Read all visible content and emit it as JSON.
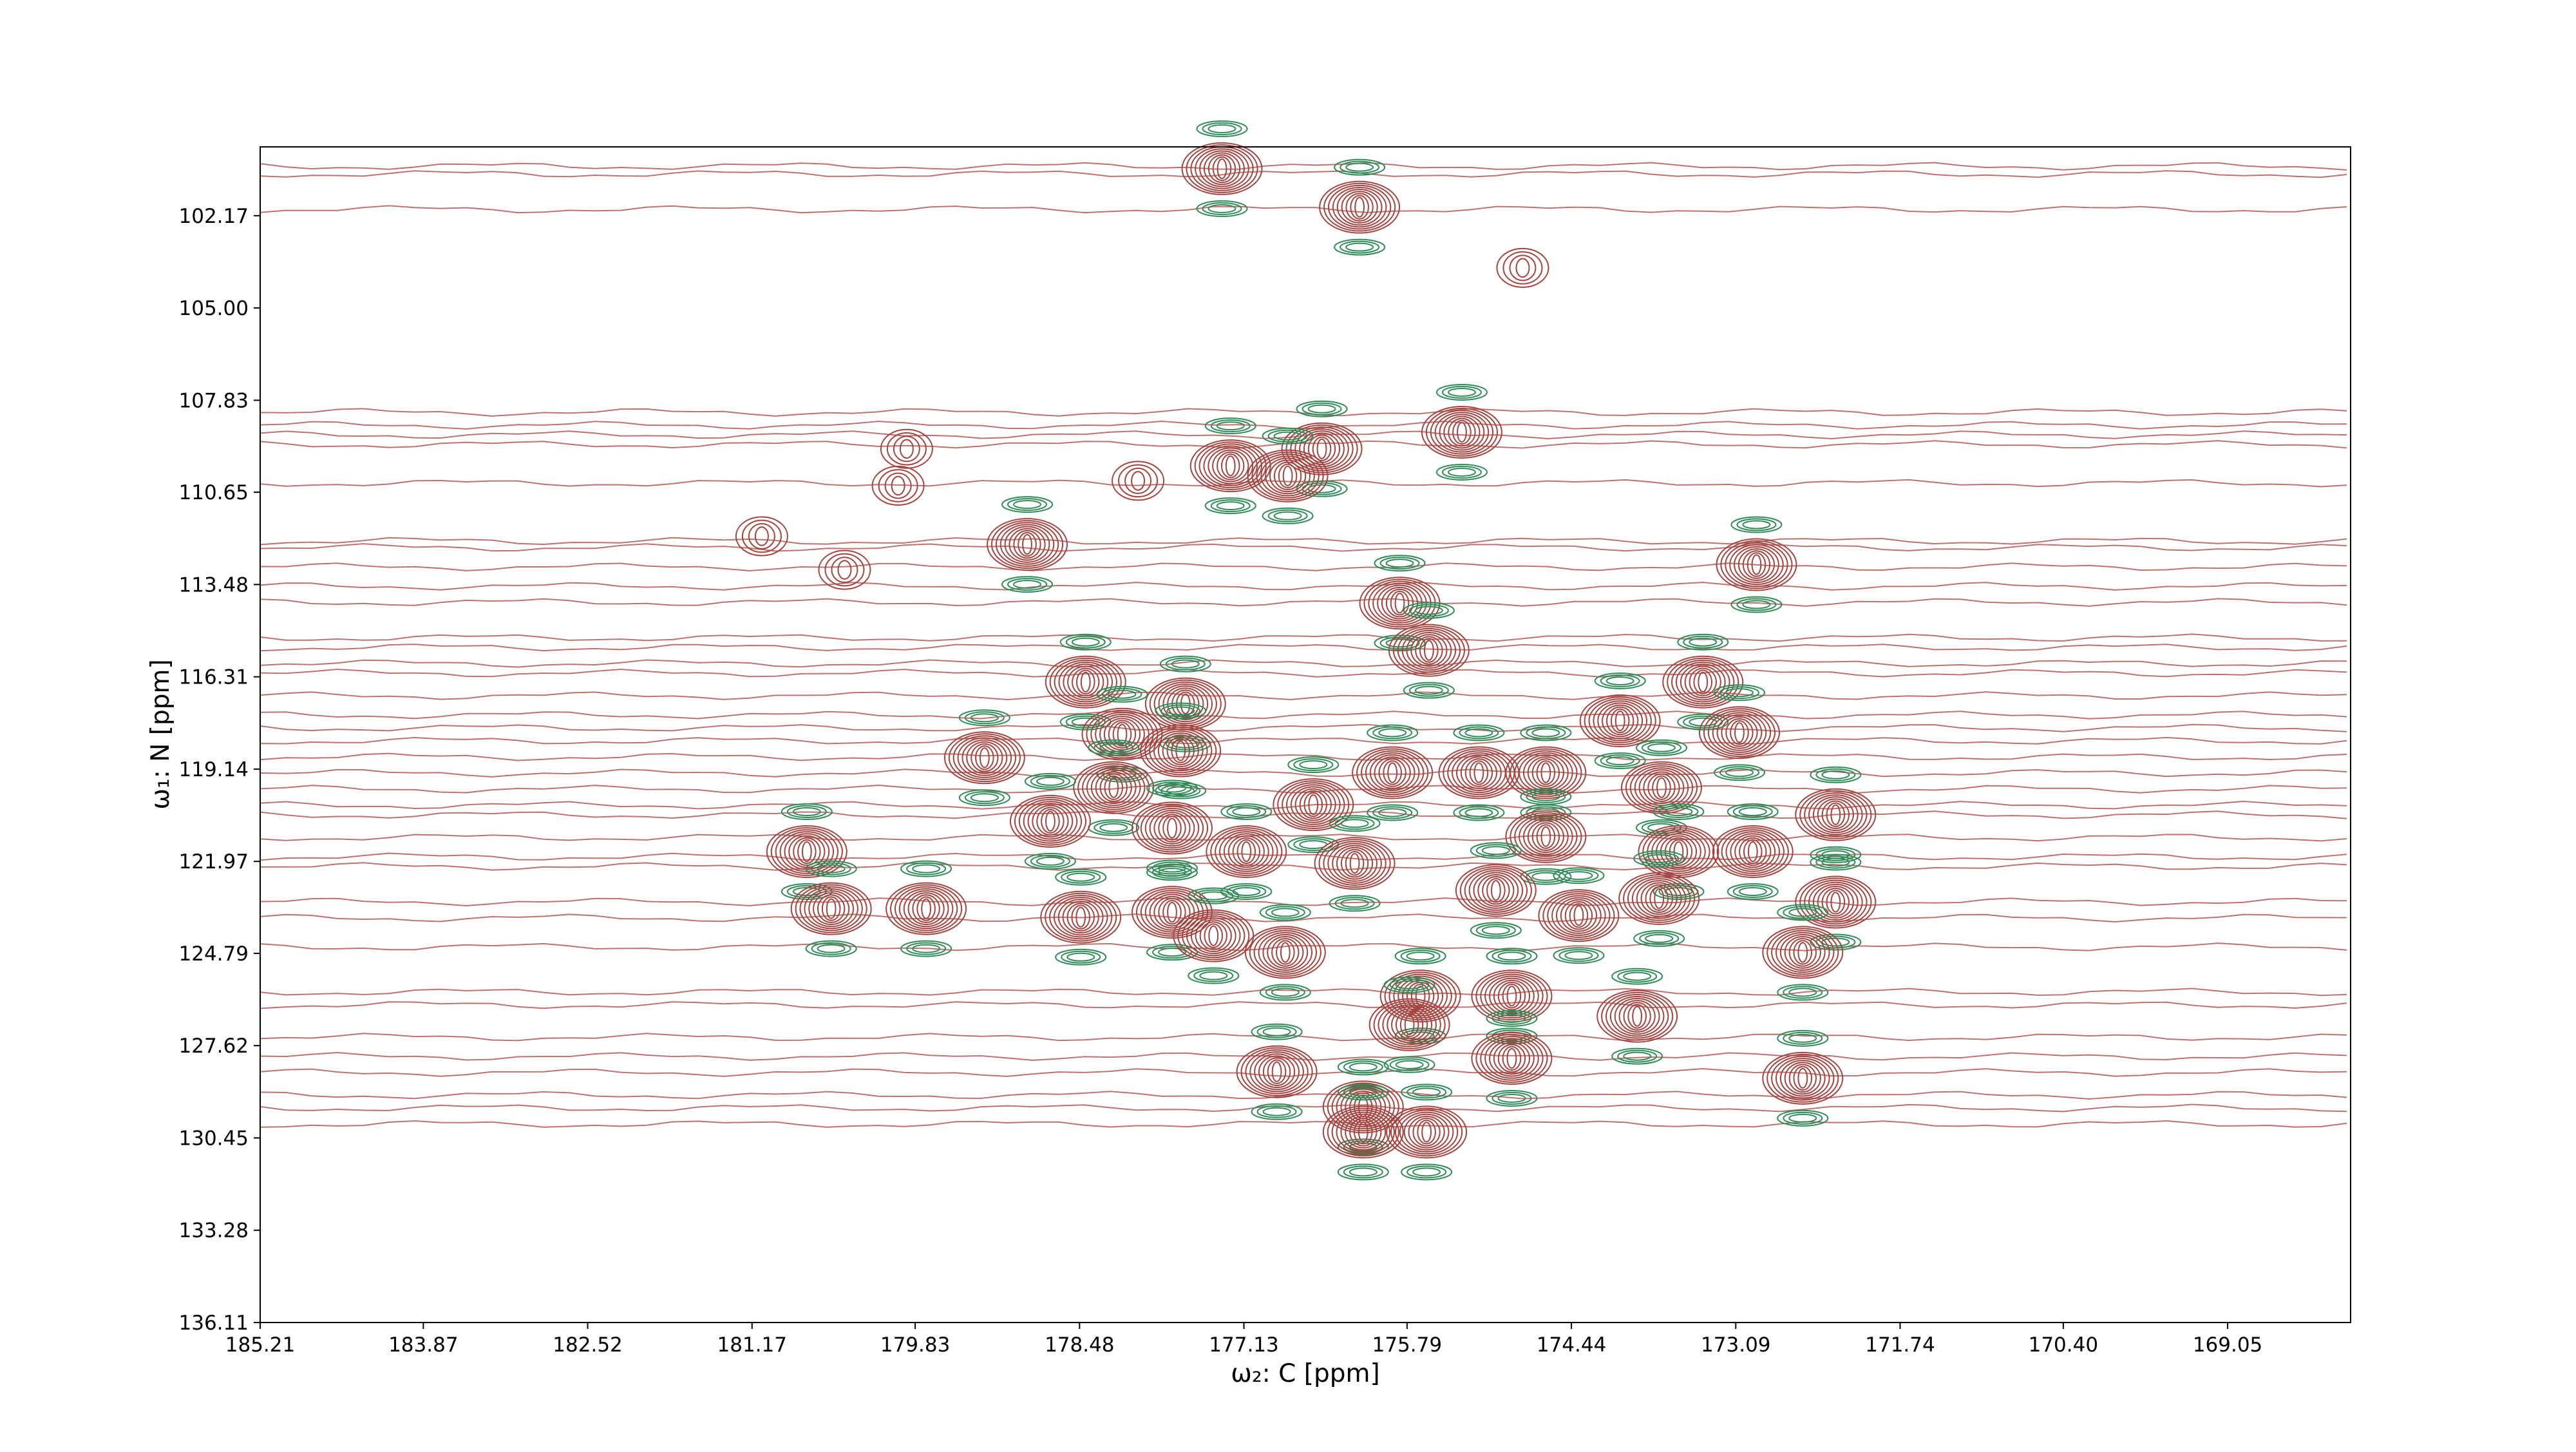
{
  "chart_data": {
    "type": "contour",
    "x_label": "ω₂: C [ppm]",
    "y_label": "ω₁: N [ppm]",
    "xlim": [
      185.21,
      168.04
    ],
    "ylim": [
      136.11,
      100.06
    ],
    "xticks": [
      185.21,
      183.87,
      182.52,
      181.17,
      179.83,
      178.48,
      177.13,
      175.79,
      174.44,
      173.09,
      171.74,
      {
        "value": 170.4,
        "label": "170.40"
      },
      169.05
    ],
    "yticks": [
      102.17,
      {
        "value": 105,
        "label": "105.00"
      },
      107.83,
      110.65,
      113.48,
      116.31,
      119.14,
      121.97,
      124.79,
      127.62,
      130.45,
      133.28,
      136.11
    ],
    "color": "#a5433f",
    "negative_color": "#2e8b57",
    "peaks": {
      "x": [
        177.31,
        176.18,
        175.34,
        176.49,
        177.24,
        176.77,
        178.91,
        172.92,
        175.85,
        175.61,
        178.43,
        173.36,
        177.61,
        174.04,
        173.06,
        178.13,
        179.26,
        177.65,
        175.91,
        175.2,
        174.65,
        178.2,
        173.7,
        176.56,
        178.72,
        177.72,
        172.27,
        180.72,
        174.65,
        177.11,
        176.22,
        173.56,
        172.95,
        175.06,
        180.52,
        179.74,
        178.47,
        177.72,
        174.38,
        173.72,
        172.27,
        177.38,
        176.79,
        172.54,
        175.68,
        174.93,
        173.9,
        175.77,
        174.93,
        176.86,
        172.54,
        176.15,
        176.15,
        175.63,
        174.84,
        178.0,
        179.9,
        181.09,
        180.41,
        179.97
      ],
      "y": [
        100.73,
        101.91,
        108.81,
        109.32,
        109.84,
        110.15,
        112.25,
        112.87,
        114.05,
        115.5,
        116.47,
        116.47,
        117.14,
        117.66,
        118.02,
        118.07,
        118.79,
        118.58,
        119.25,
        119.25,
        119.25,
        119.71,
        119.71,
        120.23,
        120.74,
        120.95,
        120.54,
        121.67,
        121.21,
        121.67,
        122.03,
        121.67,
        121.67,
        122.86,
        123.42,
        123.42,
        123.68,
        123.53,
        123.63,
        123.11,
        123.22,
        124.25,
        124.76,
        124.76,
        126.1,
        126.1,
        126.72,
        126.98,
        128.01,
        128.42,
        128.62,
        129.5,
        130.27,
        130.27,
        103.77,
        110.3,
        109.32,
        112.0,
        113.03,
        110.45
      ]
    }
  }
}
